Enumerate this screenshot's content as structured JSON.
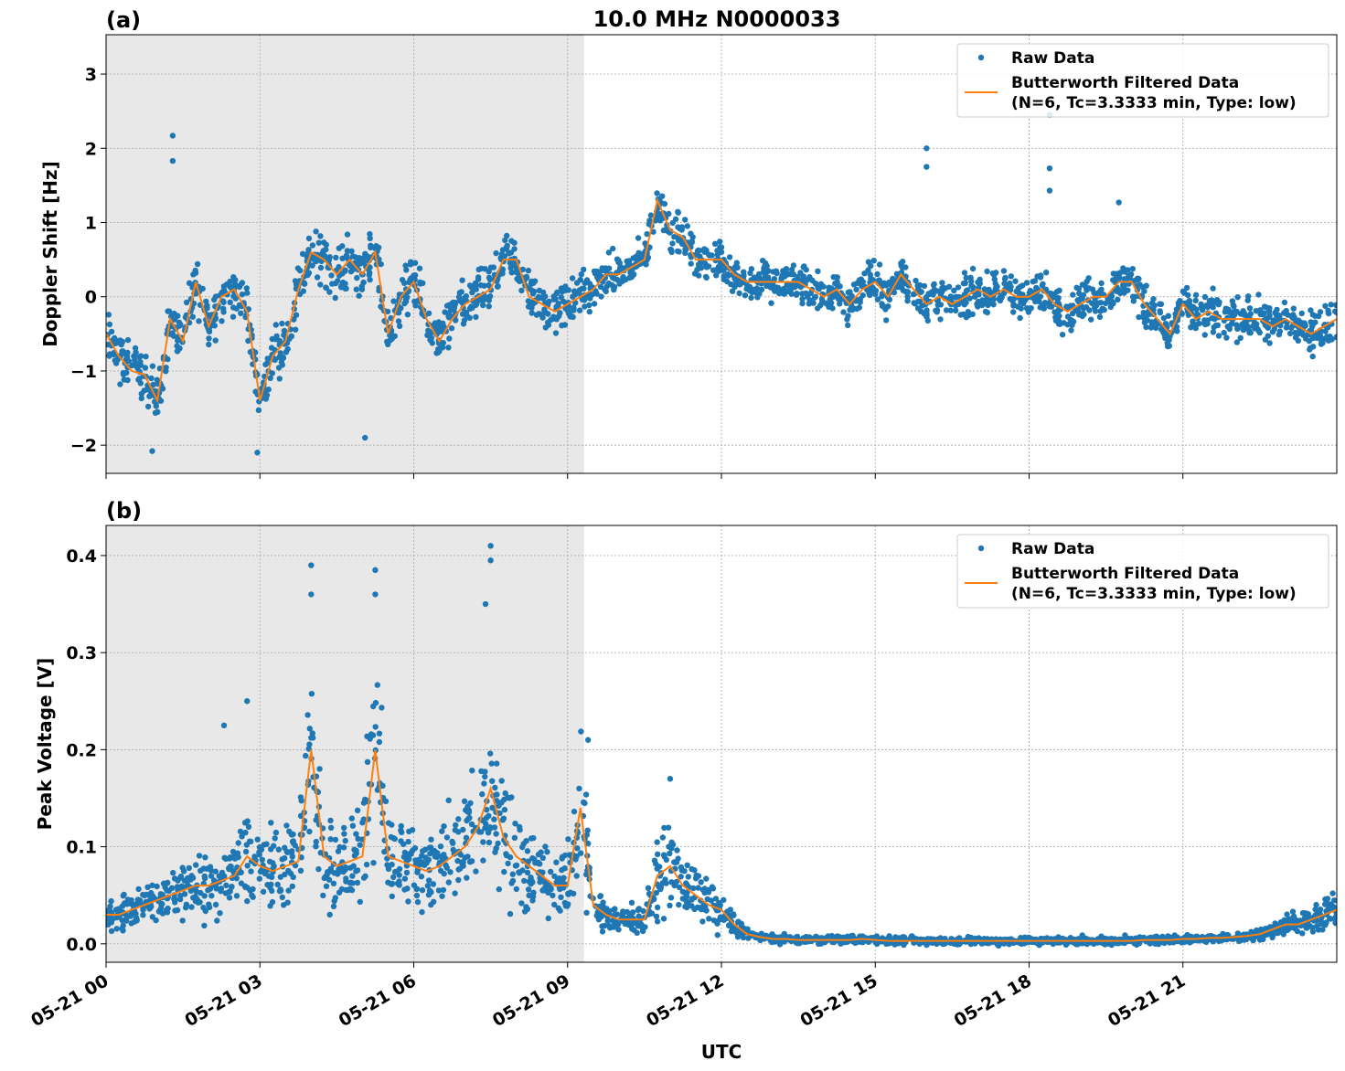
{
  "title": "10.0 MHz N0000033",
  "xlabel": "UTC",
  "colors": {
    "raw": "#1f77b4",
    "filtered": "#ff7f0e",
    "shade": "#e8e8e8"
  },
  "chart_data": [
    {
      "type": "scatter",
      "panel_label": "(a)",
      "ylabel": "Doppler Shift [Hz]",
      "xlim_hours": [
        0,
        24
      ],
      "ylim": [
        -2.38,
        3.53
      ],
      "yticks": [
        3,
        2,
        1,
        0,
        -1,
        -2
      ],
      "ytick_labels": [
        "3",
        "2",
        "1",
        "0",
        "−1",
        "−2"
      ],
      "xtick_labels": [
        "05-21 00",
        "05-21 03",
        "05-21 06",
        "05-21 09",
        "05-21 12",
        "05-21 15",
        "05-21 18",
        "05-21 21"
      ],
      "xticks_hours": [
        0,
        3,
        6,
        9,
        12,
        15,
        18,
        21
      ],
      "shaded_hours": [
        0,
        9.32
      ],
      "grid": true,
      "legend": {
        "placement": "top-right",
        "raw": "Raw Data",
        "filtered_line1": "Butterworth Filtered Data",
        "filtered_line2": "(N=6, Tc=3.3333 min, Type: low)"
      },
      "x_step_hours": 0.25,
      "filtered": [
        -0.5,
        -0.8,
        -1.0,
        -1.05,
        -1.4,
        -0.3,
        -0.6,
        0.2,
        -0.4,
        0.0,
        0.1,
        -0.2,
        -1.4,
        -0.8,
        -0.6,
        0.1,
        0.6,
        0.5,
        0.3,
        0.5,
        0.3,
        0.6,
        -0.5,
        0.0,
        0.2,
        -0.3,
        -0.6,
        -0.3,
        -0.1,
        0.0,
        0.1,
        0.5,
        0.5,
        0.0,
        -0.1,
        -0.2,
        -0.1,
        0.0,
        0.1,
        0.3,
        0.3,
        0.4,
        0.5,
        1.3,
        0.9,
        0.8,
        0.5,
        0.5,
        0.5,
        0.3,
        0.2,
        0.2,
        0.2,
        0.2,
        0.2,
        0.1,
        0.0,
        0.1,
        -0.1,
        0.1,
        0.2,
        0.0,
        0.3,
        0.1,
        -0.1,
        0.0,
        -0.1,
        0.0,
        0.1,
        0.0,
        0.1,
        0.0,
        0.0,
        0.1,
        -0.1,
        -0.2,
        -0.1,
        0.0,
        0.0,
        0.2,
        0.2,
        -0.1,
        -0.3,
        -0.5,
        -0.1,
        -0.3,
        -0.2,
        -0.3,
        -0.3,
        -0.3,
        -0.3,
        -0.4,
        -0.3,
        -0.4,
        -0.5,
        -0.4,
        -0.3
      ],
      "raw_spread": 0.4,
      "raw_outliers": [
        [
          1.3,
          2.17
        ],
        [
          1.3,
          1.83
        ],
        [
          16.0,
          2.0
        ],
        [
          16.0,
          1.75
        ],
        [
          18.4,
          2.45
        ],
        [
          18.4,
          1.73
        ],
        [
          18.4,
          1.43
        ],
        [
          19.75,
          1.27
        ],
        [
          0.9,
          -2.08
        ],
        [
          2.95,
          -2.1
        ],
        [
          5.05,
          -1.9
        ]
      ]
    },
    {
      "type": "scatter",
      "panel_label": "(b)",
      "ylabel": "Peak Voltage [V]",
      "xlim_hours": [
        0,
        24
      ],
      "ylim": [
        -0.019,
        0.431
      ],
      "yticks": [
        0.4,
        0.3,
        0.2,
        0.1,
        0.0
      ],
      "ytick_labels": [
        "0.4",
        "0.3",
        "0.2",
        "0.1",
        "0.0"
      ],
      "xtick_labels": [
        "05-21 00",
        "05-21 03",
        "05-21 06",
        "05-21 09",
        "05-21 12",
        "05-21 15",
        "05-21 18",
        "05-21 21"
      ],
      "xticks_hours": [
        0,
        3,
        6,
        9,
        12,
        15,
        18,
        21
      ],
      "shaded_hours": [
        0,
        9.32
      ],
      "grid": true,
      "legend": {
        "placement": "top-right",
        "raw": "Raw Data",
        "filtered_line1": "Butterworth Filtered Data",
        "filtered_line2": "(N=6, Tc=3.3333 min, Type: low)"
      },
      "x_step_hours": 0.25,
      "filtered": [
        0.03,
        0.03,
        0.035,
        0.04,
        0.045,
        0.05,
        0.055,
        0.06,
        0.06,
        0.065,
        0.07,
        0.09,
        0.08,
        0.075,
        0.08,
        0.085,
        0.2,
        0.09,
        0.08,
        0.085,
        0.09,
        0.2,
        0.09,
        0.085,
        0.08,
        0.075,
        0.08,
        0.09,
        0.1,
        0.12,
        0.16,
        0.11,
        0.09,
        0.08,
        0.07,
        0.06,
        0.06,
        0.14,
        0.04,
        0.03,
        0.025,
        0.025,
        0.025,
        0.07,
        0.08,
        0.06,
        0.05,
        0.04,
        0.035,
        0.02,
        0.01,
        0.007,
        0.005,
        0.005,
        0.004,
        0.004,
        0.004,
        0.004,
        0.004,
        0.005,
        0.004,
        0.003,
        0.003,
        0.003,
        0.003,
        0.003,
        0.003,
        0.003,
        0.003,
        0.003,
        0.003,
        0.003,
        0.003,
        0.003,
        0.003,
        0.003,
        0.003,
        0.003,
        0.003,
        0.003,
        0.003,
        0.004,
        0.004,
        0.004,
        0.005,
        0.005,
        0.006,
        0.006,
        0.007,
        0.008,
        0.01,
        0.015,
        0.02,
        0.02,
        0.025,
        0.03,
        0.035
      ],
      "raw_spread_fraction": 0.8,
      "raw_outliers": [
        [
          4.0,
          0.39
        ],
        [
          4.0,
          0.36
        ],
        [
          5.25,
          0.385
        ],
        [
          5.25,
          0.36
        ],
        [
          7.5,
          0.41
        ],
        [
          7.5,
          0.395
        ],
        [
          7.4,
          0.35
        ],
        [
          2.75,
          0.25
        ],
        [
          2.3,
          0.225
        ],
        [
          9.4,
          0.21
        ],
        [
          11.0,
          0.17
        ]
      ]
    }
  ]
}
